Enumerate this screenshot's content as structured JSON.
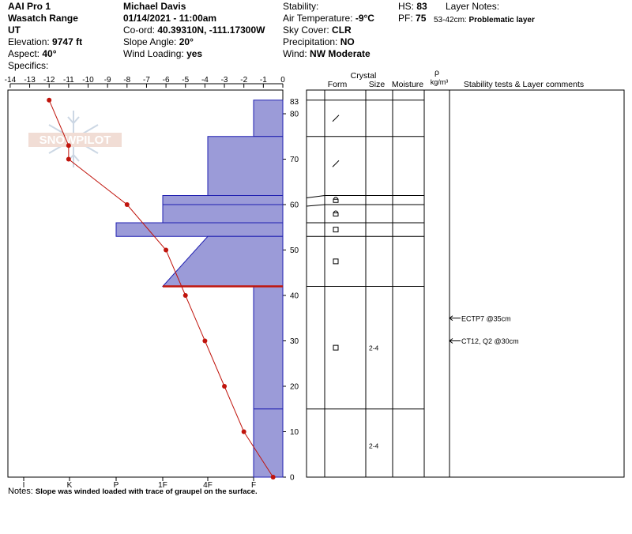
{
  "header": {
    "site": "AAI Pro 1",
    "range": "Wasatch Range",
    "state": "UT",
    "elevation_label": "Elevation:",
    "elevation": "9747 ft",
    "aspect_label": "Aspect:",
    "aspect": "40°",
    "specifics_label": "Specifics:",
    "observer": "Michael Davis",
    "datetime": "01/14/2021 - 11:00am",
    "coord_label": "Co-ord:",
    "coord": "40.39310N, -111.17300W",
    "slope_label": "Slope Angle:",
    "slope": "20°",
    "wind_loading_label": "Wind Loading:",
    "wind_loading": "yes",
    "stability_label": "Stability:",
    "air_temp_label": "Air Temperature:",
    "air_temp": "-9°C",
    "sky_label": "Sky Cover:",
    "sky": "CLR",
    "precip_label": "Precipitation:",
    "precip": "NO",
    "wind_label": "Wind:",
    "wind": "NW Moderate",
    "hs_label": "HS:",
    "hs": "83",
    "pf_label": "PF:",
    "pf": "75",
    "layer_notes_label": "Layer Notes:",
    "layer_note_range": "53-42cm:",
    "layer_note_text": "Problematic layer"
  },
  "watermark": "SNOWPILOT",
  "notes_label": "Notes:",
  "notes_text": "Slope was winded loaded with trace of graupel on the surface.",
  "columns": {
    "crystal": "Crystal",
    "form": "Form",
    "size": "Size",
    "moisture": "Moisture",
    "rho": "ρ",
    "density_unit": "kg/m³",
    "stability": "Stability tests & Layer comments"
  },
  "colors": {
    "hardness_fill": "#9b9bd8",
    "hardness_stroke": "#1f1fb0",
    "temperature": "#c0140c",
    "layer_line": "#c0140c"
  },
  "chart_data": {
    "type": "snow_profile",
    "temperature_axis": {
      "ticks": [
        -14,
        -13,
        -12,
        -11,
        -10,
        -9,
        -8,
        -7,
        -6,
        -5,
        -4,
        -3,
        -2,
        -1,
        0
      ],
      "range": [
        -14,
        0
      ]
    },
    "hardness_axis": {
      "labels": [
        "I",
        "K",
        "P",
        "1F",
        "4F",
        "F"
      ]
    },
    "height_axis": {
      "ticks": [
        0,
        10,
        20,
        30,
        40,
        50,
        60,
        70,
        80
      ],
      "top_label": "83",
      "range": [
        0,
        83
      ]
    },
    "temperature_profile": [
      {
        "height": 83,
        "temp": -12
      },
      {
        "height": 73,
        "temp": -11
      },
      {
        "height": 70,
        "temp": -11
      },
      {
        "height": 60,
        "temp": -8
      },
      {
        "height": 50,
        "temp": -6
      },
      {
        "height": 40,
        "temp": -5
      },
      {
        "height": 30,
        "temp": -4
      },
      {
        "height": 20,
        "temp": -3
      },
      {
        "height": 10,
        "temp": -2
      },
      {
        "height": 0,
        "temp": -0.5
      }
    ],
    "hardness_profile": [
      {
        "top": 83,
        "bottom": 75,
        "hardness": "F"
      },
      {
        "top": 75,
        "bottom": 62,
        "hardness": "4F"
      },
      {
        "top": 62,
        "bottom": 60,
        "hardness": "1F"
      },
      {
        "top": 60,
        "bottom": 56,
        "hardness": "1F"
      },
      {
        "top": 56,
        "bottom": 53,
        "hardness": "P"
      },
      {
        "top": 53,
        "bottom": 42,
        "hardness": "4F-1F"
      },
      {
        "top": 42,
        "bottom": 15,
        "hardness": "4F-F"
      },
      {
        "top": 15,
        "bottom": 0,
        "hardness": "F"
      }
    ],
    "problem_layer_height": 42,
    "layer_boundaries": [
      83,
      75,
      62,
      60,
      56,
      53,
      42,
      15,
      0
    ],
    "layer_forms": [
      {
        "height": 79,
        "form": "decomposing"
      },
      {
        "height": 69,
        "form": "decomposing"
      },
      {
        "height": 61,
        "form": "mixed"
      },
      {
        "height": 58,
        "form": "mixed"
      },
      {
        "height": 54.5,
        "form": "faceted"
      },
      {
        "height": 47.5,
        "form": "faceted"
      },
      {
        "height": 28.5,
        "form": "faceted",
        "size": "2-4"
      },
      {
        "height": 7,
        "form": "",
        "size": "2-4"
      }
    ],
    "stability_tests": [
      {
        "height": 35,
        "text": "ECTP7 @35cm"
      },
      {
        "height": 30,
        "text": "CT12, Q2 @30cm"
      }
    ]
  }
}
